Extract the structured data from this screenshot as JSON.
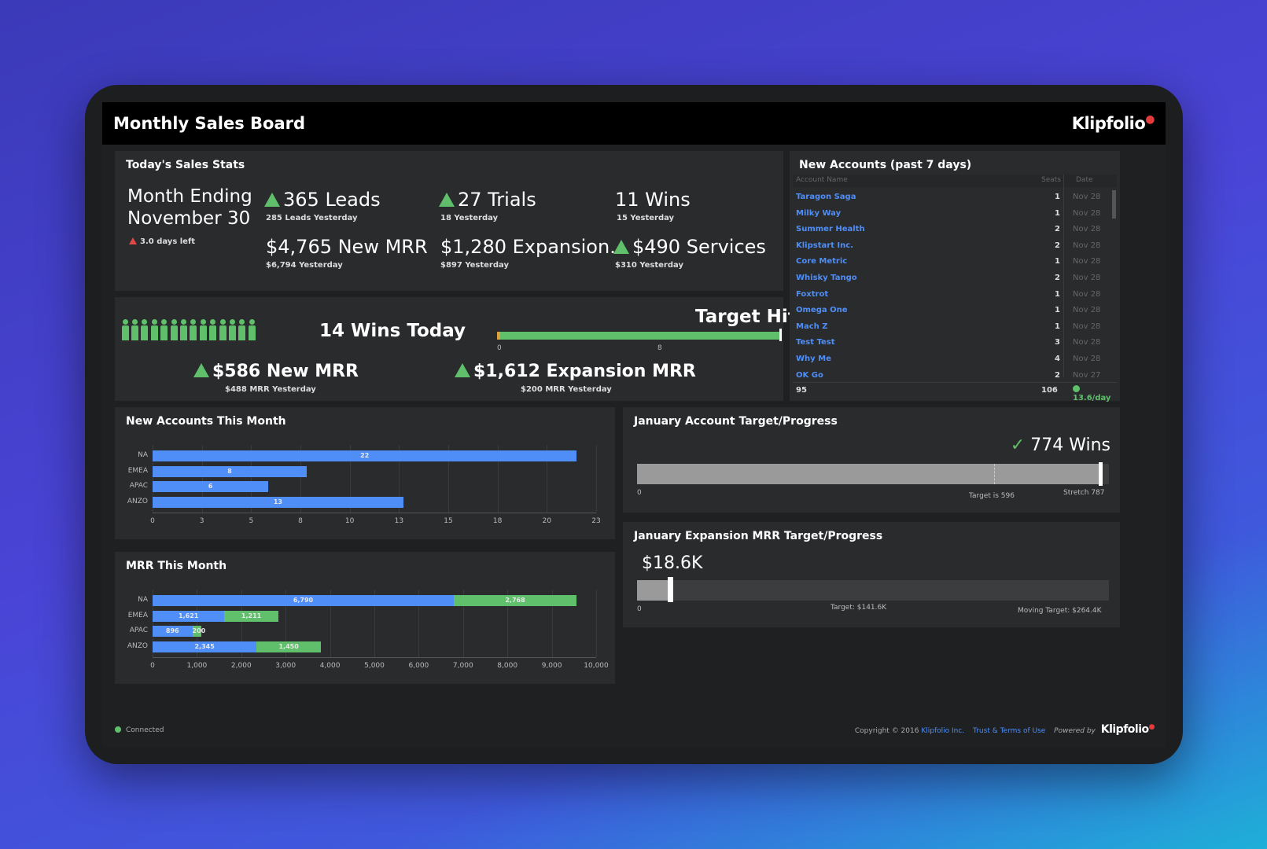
{
  "header": {
    "title": "Monthly Sales Board",
    "logo": "Klipfolio"
  },
  "today_stats": {
    "title": "Today's Sales Stats",
    "month_ending_line1": "Month Ending",
    "month_ending_line2": "November 30",
    "days_left": "3.0 days left",
    "leads": "365 Leads",
    "leads_sub": "285 Leads Yesterday",
    "trials": "27 Trials",
    "trials_sub": "18 Yesterday",
    "wins": "11 Wins",
    "wins_sub": "15 Yesterday",
    "new_mrr": "$4,765 New MRR",
    "new_mrr_sub": "$6,794 Yesterday",
    "expansion": "$1,280 Expansion...",
    "expansion_sub": "$897 Yesterday",
    "services": "$490 Services",
    "services_sub": "$310 Yesterday"
  },
  "wins_today": {
    "wins_label": "14 Wins Today",
    "target_hit": "Target Hit!",
    "progress_min": "0",
    "progress_mark": "8",
    "progress_fraction": 1.0,
    "people_count": 14,
    "new_mrr": "$586 New MRR",
    "new_mrr_sub": "$488 MRR Yesterday",
    "expansion_mrr": "$1,612 Expansion MRR",
    "expansion_mrr_sub": "$200 MRR Yesterday"
  },
  "new_accounts": {
    "title": "New Accounts (past 7 days)",
    "col_name": "Account Name",
    "col_seats": "Seats",
    "col_date": "Date",
    "rows": [
      {
        "name": "Taragon Saga",
        "seats": "1",
        "date": "Nov 28"
      },
      {
        "name": "Milky Way",
        "seats": "1",
        "date": "Nov 28"
      },
      {
        "name": "Summer Health",
        "seats": "2",
        "date": "Nov 28"
      },
      {
        "name": "Klipstart Inc.",
        "seats": "2",
        "date": "Nov 28"
      },
      {
        "name": "Core Metric",
        "seats": "1",
        "date": "Nov 28"
      },
      {
        "name": "Whisky Tango",
        "seats": "2",
        "date": "Nov 28"
      },
      {
        "name": "Foxtrot",
        "seats": "1",
        "date": "Nov 28"
      },
      {
        "name": "Omega One",
        "seats": "1",
        "date": "Nov 28"
      },
      {
        "name": "Mach Z",
        "seats": "1",
        "date": "Nov 28"
      },
      {
        "name": "Test Test",
        "seats": "3",
        "date": "Nov 28"
      },
      {
        "name": "Why Me",
        "seats": "4",
        "date": "Nov 28"
      },
      {
        "name": "OK Go",
        "seats": "2",
        "date": "Nov 27"
      }
    ],
    "total_count": "95",
    "total_seats": "106",
    "rate": "13.6/day"
  },
  "new_accounts_month": {
    "title": "New Accounts This Month",
    "ticks": [
      "0",
      "3",
      "5",
      "8",
      "10",
      "13",
      "15",
      "18",
      "20",
      "23"
    ]
  },
  "mrr_month": {
    "title": "MRR This Month",
    "ticks": [
      "0",
      "1,000",
      "2,000",
      "3,000",
      "4,000",
      "5,000",
      "6,000",
      "7,000",
      "8,000",
      "9,000",
      "10,000"
    ]
  },
  "chart_data": [
    {
      "type": "bar",
      "title": "New Accounts This Month",
      "orientation": "horizontal",
      "categories": [
        "NA",
        "EMEA",
        "APAC",
        "ANZO"
      ],
      "values": [
        22,
        8,
        6,
        13
      ],
      "xlim": [
        0,
        23
      ],
      "bar_color": "#4f8ef7"
    },
    {
      "type": "bar",
      "title": "MRR This Month",
      "orientation": "horizontal",
      "stacked": true,
      "categories": [
        "NA",
        "EMEA",
        "APAC",
        "ANZO"
      ],
      "series": [
        {
          "values": [
            6790,
            1621,
            896,
            2345
          ],
          "labels": [
            "6,790",
            "1,621",
            "896",
            "2,345"
          ],
          "color": "#4f8ef7"
        },
        {
          "values": [
            2768,
            1211,
            200,
            1450
          ],
          "labels": [
            "2,768",
            "1,211",
            "200",
            "1,450"
          ],
          "color": "#5fbf6b"
        }
      ],
      "xlim": [
        0,
        10000
      ]
    }
  ],
  "jan_accounts": {
    "title": "January Account Target/Progress",
    "value": "774 Wins",
    "min": "0",
    "target": "Target is 596",
    "stretch": "Stretch 787",
    "progress_value": 774,
    "target_value": 596,
    "max_value": 787
  },
  "jan_mrr": {
    "title": "January Expansion MRR Target/Progress",
    "value": "$18.6K",
    "min": "0",
    "target": "Target: $141.6K",
    "moving_target": "Moving Target: $264.4K",
    "progress_value": 18.6,
    "max_value": 264.4
  },
  "footer": {
    "status": "Connected",
    "copyright": "Copyright © 2016",
    "company": "Klipfolio Inc.",
    "terms": "Trust & Terms of Use",
    "powered": "Powered by",
    "logo": "Klipfolio"
  }
}
